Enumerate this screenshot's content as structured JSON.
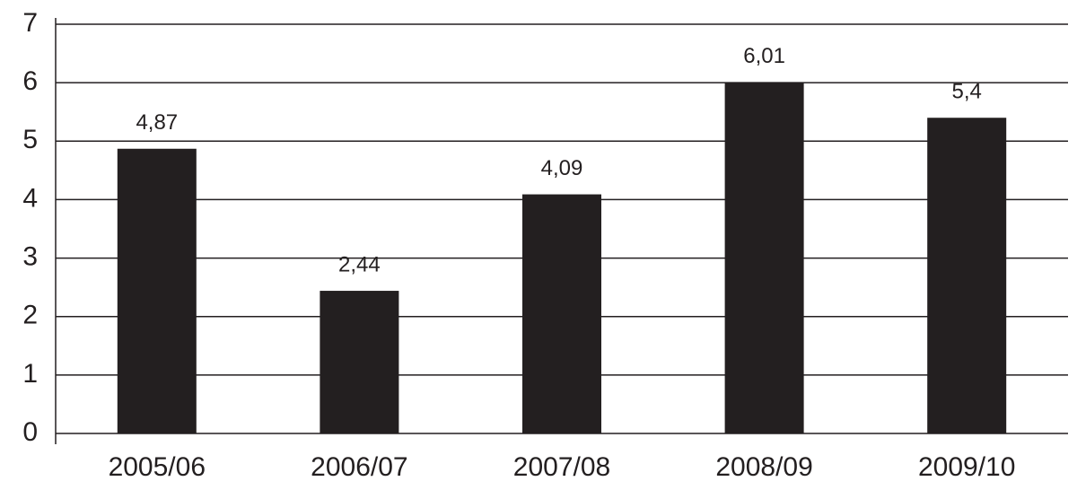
{
  "chart_data": {
    "type": "bar",
    "categories": [
      "2005/06",
      "2006/07",
      "2007/08",
      "2008/09",
      "2009/10"
    ],
    "values": [
      4.87,
      2.44,
      4.09,
      6.01,
      5.4
    ],
    "value_labels": [
      "4,87",
      "2,44",
      "4,09",
      "6,01",
      "5,4"
    ],
    "color": "#231f20",
    "ylim": [
      0,
      7
    ],
    "yticks": [
      0,
      1,
      2,
      3,
      4,
      5,
      6,
      7
    ],
    "grid": true
  }
}
